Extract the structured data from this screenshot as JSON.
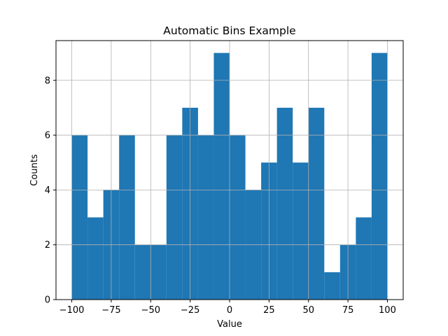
{
  "chart_data": {
    "type": "bar",
    "title": "Automatic Bins Example",
    "xlabel": "Value",
    "ylabel": "Counts",
    "xlim": [
      -110,
      110
    ],
    "ylim": [
      0,
      9.45
    ],
    "xticks": [
      -100,
      -75,
      -50,
      -25,
      0,
      25,
      50,
      75,
      100
    ],
    "yticks": [
      0,
      2,
      4,
      6,
      8
    ],
    "bin_edges": [
      -100,
      -90,
      -80,
      -70,
      -60,
      -50,
      -40,
      -30,
      -20,
      -10,
      0,
      10,
      20,
      30,
      40,
      50,
      60,
      70,
      80,
      90,
      100
    ],
    "values": [
      6,
      3,
      4,
      6,
      2,
      2,
      6,
      7,
      6,
      9,
      6,
      4,
      5,
      7,
      5,
      7,
      1,
      2,
      3,
      9
    ],
    "grid": true,
    "bar_color": "#1f77b4",
    "grid_color": "#b0b0b0"
  }
}
